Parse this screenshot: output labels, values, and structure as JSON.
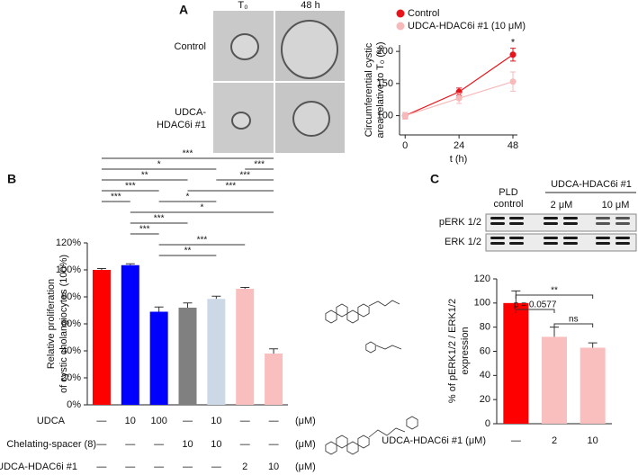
{
  "panels": {
    "a": "A",
    "b": "B",
    "c": "C"
  },
  "micrographs": {
    "columns": [
      "T₀",
      "48 h"
    ],
    "rows": [
      [
        "Control"
      ],
      [
        "UDCA-",
        "HDAC6i #1"
      ]
    ]
  },
  "blot": {
    "groups": [
      [
        "PLD",
        "control"
      ],
      [
        "UDCA-HDAC6i #1"
      ]
    ],
    "doses": [
      "2 μM",
      "10 μM"
    ],
    "rows": [
      "pERK 1/2",
      "ERK 1/2"
    ]
  },
  "chart_data": [
    {
      "type": "line",
      "ylabel": [
        "Circumferential cystic",
        "area relative to T₀ (%)"
      ],
      "xlabel": "t (h)",
      "x": [
        0,
        24,
        48
      ],
      "xlim": [
        -2.5,
        50
      ],
      "xticks": [
        0,
        24,
        48
      ],
      "ylim": [
        70,
        210
      ],
      "yticks": [
        100,
        150,
        200
      ],
      "series": [
        {
          "name": "Control",
          "color": "#e8141b",
          "values": [
            100,
            137,
            195
          ],
          "errors": [
            5,
            6,
            10
          ]
        },
        {
          "name": "UDCA-HDAC6i #1 (10 μM)",
          "color": "#f7b9b9",
          "values": [
            100,
            127,
            153
          ],
          "errors": [
            5,
            8,
            15
          ]
        }
      ],
      "annotations": [
        {
          "text": "*",
          "x": 48
        }
      ]
    },
    {
      "type": "bar",
      "ylabel": [
        "Relative proliferation",
        "of cystic cholangiocytes (100%)"
      ],
      "categories": [
        null,
        null,
        null,
        null,
        null,
        null,
        null
      ],
      "values": [
        100,
        103.5,
        69,
        72,
        78.5,
        86,
        38
      ],
      "errors": [
        1,
        1,
        3.5,
        3.5,
        2,
        1,
        3.5
      ],
      "colors": [
        "#ff0000",
        "#0000ff",
        "#0000ff",
        "#808080",
        "#ccd8e6",
        "#f9bfbf",
        "#f9bfbf"
      ],
      "ylim": [
        0,
        120
      ],
      "yticks": [
        {
          "value": 0,
          "label": "0%"
        },
        {
          "value": 20,
          "label": "20%"
        },
        {
          "value": 40,
          "label": "40%"
        },
        {
          "value": 60,
          "label": "60%"
        },
        {
          "value": 80,
          "label": "80%"
        },
        {
          "value": 100,
          "label": "100%"
        },
        {
          "value": 120,
          "label": "120%"
        }
      ],
      "brackets": [
        {
          "from": 0,
          "to": 6,
          "label": "***"
        },
        {
          "from": 0,
          "to": 4,
          "label": "*"
        },
        {
          "from": 0,
          "to": 3,
          "label": "**"
        },
        {
          "from": 0,
          "to": 2,
          "label": "***"
        },
        {
          "from": 0,
          "to": 1,
          "label": "***"
        },
        {
          "from": 1,
          "to": 6,
          "label": "*"
        },
        {
          "from": 1,
          "to": 3,
          "label": "***"
        },
        {
          "from": 3,
          "to": 6,
          "label": "***"
        },
        {
          "from": 2,
          "to": 4,
          "label": "*"
        },
        {
          "from": 5,
          "to": 6,
          "label": "***"
        },
        {
          "from": 1,
          "to": 2,
          "label": "***"
        },
        {
          "from": 2,
          "to": 5,
          "label": "***"
        },
        {
          "from": 2,
          "to": 4,
          "label": "**"
        },
        {
          "from": 4,
          "to": 6,
          "label": "***"
        }
      ],
      "table": {
        "rows": [
          {
            "label": "UDCA",
            "cells": [
              "—",
              "10",
              "100",
              "—",
              "10",
              "—",
              "—"
            ],
            "unit": "(μM)"
          },
          {
            "label": "Chelating-spacer (8)",
            "cells": [
              "—",
              "—",
              "—",
              "10",
              "10",
              "—",
              "—"
            ],
            "unit": "(μM)"
          },
          {
            "label": "UDCA-HDAC6i #1",
            "cells": [
              "—",
              "—",
              "—",
              "—",
              "—",
              "2",
              "10"
            ],
            "unit": "(μM)"
          }
        ]
      }
    },
    {
      "type": "bar",
      "ylabel": [
        "% of pERK1/2 / ERK1/2",
        "expression"
      ],
      "xlabel": "UDCA-HDAC6i #1 (μM)",
      "categories": [
        "—",
        "2",
        "10"
      ],
      "values": [
        100,
        72,
        63
      ],
      "errors": [
        10,
        8,
        4
      ],
      "colors": [
        "#ff0000",
        "#f9bfbf",
        "#f9bfbf"
      ],
      "ylim": [
        0,
        120
      ],
      "yticks": [
        0,
        20,
        40,
        60,
        80,
        100,
        120
      ],
      "brackets": [
        {
          "from": 0,
          "to": 2,
          "label": "**"
        },
        {
          "from": 0,
          "to": 1,
          "label": "p = 0.0577"
        },
        {
          "from": 1,
          "to": 2,
          "label": "ns"
        }
      ]
    }
  ]
}
